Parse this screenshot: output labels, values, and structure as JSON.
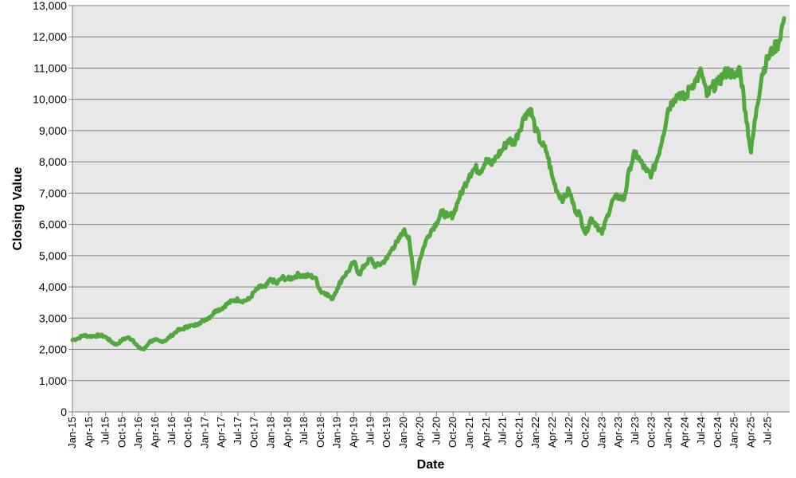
{
  "chart_data": {
    "type": "line",
    "title": "",
    "xlabel": "Date",
    "ylabel": "Closing Value",
    "ylim": [
      0,
      13000
    ],
    "y_ticks": [
      0,
      1000,
      2000,
      3000,
      4000,
      5000,
      6000,
      7000,
      8000,
      9000,
      10000,
      11000,
      12000,
      13000
    ],
    "y_tick_labels": [
      "0",
      "1,000",
      "2,000",
      "3,000",
      "4,000",
      "5,000",
      "6,000",
      "7,000",
      "8,000",
      "9,000",
      "10,000",
      "11,000",
      "12,000",
      "13,000"
    ],
    "xlim": [
      "2015-01",
      "2025-11"
    ],
    "x_tick_labels": [
      "Jan-15",
      "Apr-15",
      "Jul-15",
      "Oct-15",
      "Jan-16",
      "Apr-16",
      "Jul-16",
      "Oct-16",
      "Jan-17",
      "Apr-17",
      "Jul-17",
      "Oct-17",
      "Jan-18",
      "Apr-18",
      "Jul-18",
      "Oct-18",
      "Jan-19",
      "Apr-19",
      "Jul-19",
      "Oct-19",
      "Jan-20",
      "Apr-20",
      "Jul-20",
      "Oct-20",
      "Jan-21",
      "Apr-21",
      "Jul-21",
      "Oct-21",
      "Jan-22",
      "Apr-22",
      "Jul-22",
      "Oct-22",
      "Jan-23",
      "Apr-23",
      "Jul-23",
      "Oct-23",
      "Jan-24",
      "Apr-24",
      "Jul-24",
      "Oct-24",
      "Jan-25",
      "Apr-25",
      "Jul-25"
    ],
    "grid": true,
    "legend": "none",
    "colors": {
      "line": "#52a83e",
      "plot_bg": "#e8e8e8",
      "grid": "#808080"
    },
    "series": [
      {
        "name": "",
        "x": [
          "2015-01",
          "2015-02",
          "2015-03",
          "2015-04",
          "2015-05",
          "2015-06",
          "2015-07",
          "2015-08",
          "2015-09",
          "2015-10",
          "2015-11",
          "2015-12",
          "2016-01",
          "2016-02",
          "2016-03",
          "2016-04",
          "2016-05",
          "2016-06",
          "2016-07",
          "2016-08",
          "2016-09",
          "2016-10",
          "2016-11",
          "2016-12",
          "2017-01",
          "2017-02",
          "2017-03",
          "2017-04",
          "2017-05",
          "2017-06",
          "2017-07",
          "2017-08",
          "2017-09",
          "2017-10",
          "2017-11",
          "2017-12",
          "2018-01",
          "2018-02",
          "2018-03",
          "2018-04",
          "2018-05",
          "2018-06",
          "2018-07",
          "2018-08",
          "2018-09",
          "2018-10",
          "2018-11",
          "2018-12",
          "2019-01",
          "2019-02",
          "2019-03",
          "2019-04",
          "2019-05",
          "2019-06",
          "2019-07",
          "2019-08",
          "2019-09",
          "2019-10",
          "2019-11",
          "2019-12",
          "2020-01",
          "2020-02",
          "2020-03",
          "2020-04",
          "2020-05",
          "2020-06",
          "2020-07",
          "2020-08",
          "2020-09",
          "2020-10",
          "2020-11",
          "2020-12",
          "2021-01",
          "2021-02",
          "2021-03",
          "2021-04",
          "2021-05",
          "2021-06",
          "2021-07",
          "2021-08",
          "2021-09",
          "2021-10",
          "2021-11",
          "2021-12",
          "2022-01",
          "2022-02",
          "2022-03",
          "2022-04",
          "2022-05",
          "2022-06",
          "2022-07",
          "2022-08",
          "2022-09",
          "2022-10",
          "2022-11",
          "2022-12",
          "2023-01",
          "2023-02",
          "2023-03",
          "2023-04",
          "2023-05",
          "2023-06",
          "2023-07",
          "2023-08",
          "2023-09",
          "2023-10",
          "2023-11",
          "2023-12",
          "2024-01",
          "2024-02",
          "2024-03",
          "2024-04",
          "2024-05",
          "2024-06",
          "2024-07",
          "2024-08",
          "2024-09",
          "2024-10",
          "2024-11",
          "2024-12",
          "2025-01",
          "2025-02",
          "2025-03",
          "2025-04",
          "2025-05",
          "2025-06",
          "2025-07",
          "2025-08",
          "2025-09",
          "2025-10"
        ],
        "values": [
          2300,
          2350,
          2450,
          2420,
          2430,
          2450,
          2400,
          2250,
          2150,
          2300,
          2380,
          2300,
          2050,
          2000,
          2250,
          2300,
          2250,
          2300,
          2450,
          2600,
          2650,
          2750,
          2750,
          2850,
          2950,
          3050,
          3250,
          3300,
          3450,
          3550,
          3600,
          3550,
          3600,
          3850,
          4000,
          4000,
          4250,
          4100,
          4300,
          4250,
          4300,
          4400,
          4350,
          4350,
          4300,
          3850,
          3800,
          3600,
          3950,
          4300,
          4500,
          4800,
          4400,
          4700,
          4900,
          4650,
          4750,
          4900,
          5250,
          5450,
          5800,
          5600,
          4100,
          4900,
          5450,
          5800,
          6050,
          6400,
          6250,
          6300,
          6800,
          7200,
          7600,
          7800,
          7700,
          8100,
          7900,
          8200,
          8400,
          8700,
          8600,
          9000,
          9500,
          9700,
          9000,
          8600,
          8300,
          7500,
          7000,
          6800,
          7100,
          6500,
          6300,
          5700,
          6200,
          6000,
          5700,
          6300,
          6800,
          6900,
          6800,
          7800,
          8300,
          8000,
          7700,
          7600,
          8100,
          8800,
          9700,
          10000,
          10200,
          10000,
          10400,
          10600,
          10900,
          10100,
          10400,
          10500,
          10800,
          10900,
          10700,
          11000,
          9600,
          8300,
          9700,
          10800,
          11300,
          11600,
          11800,
          12600
        ]
      }
    ]
  }
}
